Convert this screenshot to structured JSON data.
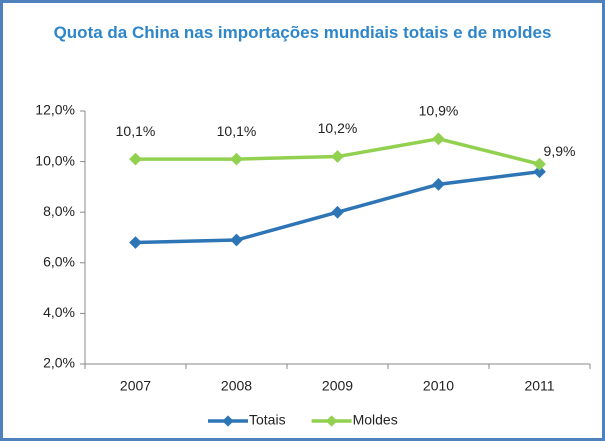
{
  "chart_data": {
    "type": "line",
    "title": "Quota da China nas importações mundiais totais e de moldes",
    "categories": [
      "2007",
      "2008",
      "2009",
      "2010",
      "2011"
    ],
    "series": [
      {
        "name": "Totais",
        "color": "#2e75b6",
        "values": [
          6.8,
          6.9,
          8.0,
          9.1,
          9.6
        ]
      },
      {
        "name": "Moldes",
        "color": "#92d050",
        "values": [
          10.1,
          10.1,
          10.2,
          10.9,
          9.9
        ],
        "value_labels": [
          "10,1%",
          "10,1%",
          "10,2%",
          "10,9%",
          "9,9%"
        ]
      }
    ],
    "ylim": [
      2,
      12
    ],
    "yticks": [
      {
        "value": 2,
        "label": "2,0%"
      },
      {
        "value": 4,
        "label": "4,0%"
      },
      {
        "value": 6,
        "label": "6,0%"
      },
      {
        "value": 8,
        "label": "8,0%"
      },
      {
        "value": 10,
        "label": "10,0%"
      },
      {
        "value": 12,
        "label": "12,0%"
      }
    ],
    "grid": false,
    "legend": "bottom"
  }
}
